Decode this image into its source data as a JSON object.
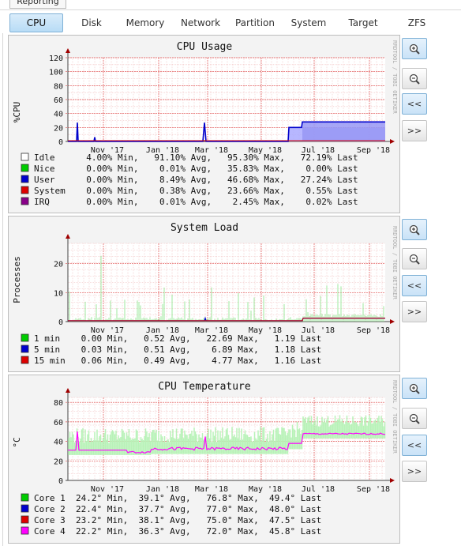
{
  "top_tab": {
    "label": "Reporting"
  },
  "tabs": [
    {
      "label": "CPU",
      "active": true
    },
    {
      "label": "Disk"
    },
    {
      "label": "Memory"
    },
    {
      "label": "Network"
    },
    {
      "label": "Partition"
    },
    {
      "label": "System"
    },
    {
      "label": "Target"
    },
    {
      "label": "ZFS"
    }
  ],
  "watermark": "RRDTOOL / TOBI OETIKER",
  "buttons": {
    "zoom_in": "zoom-in-icon",
    "zoom_out": "zoom-out-icon",
    "prev": "<<",
    "next": ">>"
  },
  "chart_data": [
    {
      "type": "area",
      "title": "CPU Usage",
      "ylabel": "%CPU",
      "ylim": [
        0,
        120
      ],
      "yticks": [
        "120",
        "100",
        "80",
        "60",
        "40",
        "20",
        "0"
      ],
      "xticks": [
        "Nov '17",
        "Jan '18",
        "Mar '18",
        "May '18",
        "Jul '18",
        "Sep '18"
      ],
      "grid": true,
      "series": [
        {
          "name": "Idle",
          "color": "#ffffff",
          "min": "4.00%",
          "avg": "91.10%",
          "max": "95.30%",
          "last": "72.19%"
        },
        {
          "name": "Nice",
          "color": "#00cc00",
          "min": "0.00%",
          "avg": "0.01%",
          "max": "35.83%",
          "last": "0.00%"
        },
        {
          "name": "User",
          "color": "#0000cc",
          "min": "0.00%",
          "avg": "8.49%",
          "max": "46.68%",
          "last": "27.24%"
        },
        {
          "name": "System",
          "color": "#dd0000",
          "min": "0.00%",
          "avg": "0.38%",
          "max": "23.66%",
          "last": "0.55%"
        },
        {
          "name": "IRQ",
          "color": "#880088",
          "min": "0.00%",
          "avg": "0.01%",
          "max": "2.45%",
          "last": "0.02%"
        }
      ]
    },
    {
      "type": "line",
      "title": "System Load",
      "ylabel": "Processes",
      "ylim": [
        0,
        27
      ],
      "yticks": [
        "20",
        "10",
        "0"
      ],
      "xticks": [
        "Nov '17",
        "Jan '18",
        "Mar '18",
        "May '18",
        "Jul '18",
        "Sep '18"
      ],
      "grid": true,
      "series": [
        {
          "name": "1 min",
          "color": "#00cc00",
          "min": "0.00",
          "avg": "0.52",
          "max": "22.69",
          "last": "1.19"
        },
        {
          "name": "5 min",
          "color": "#0000cc",
          "min": "0.03",
          "avg": "0.51",
          "max": "6.89",
          "last": "1.18"
        },
        {
          "name": "15 min",
          "color": "#dd0000",
          "min": "0.06",
          "avg": "0.49",
          "max": "4.77",
          "last": "1.16"
        }
      ]
    },
    {
      "type": "line",
      "title": "CPU Temperature",
      "ylabel": "°C",
      "ylim": [
        0,
        85
      ],
      "yticks": [
        "80",
        "60",
        "40",
        "20",
        "0"
      ],
      "xticks": [
        "Nov '17",
        "Jan '18",
        "Mar '18",
        "May '18",
        "Jul '18",
        "Sep '18"
      ],
      "grid": true,
      "series": [
        {
          "name": "Core 1",
          "color": "#00cc00",
          "min": "24.2°",
          "avg": "39.1°",
          "max": "76.8°",
          "last": "49.4°"
        },
        {
          "name": "Core 2",
          "color": "#0000cc",
          "min": "22.4°",
          "avg": "37.7°",
          "max": "77.0°",
          "last": "48.0°"
        },
        {
          "name": "Core 3",
          "color": "#dd0000",
          "min": "23.2°",
          "avg": "38.1°",
          "max": "75.0°",
          "last": "47.5°"
        },
        {
          "name": "Core 4",
          "color": "#ff00ff",
          "min": "22.2°",
          "avg": "36.3°",
          "max": "72.0°",
          "last": "45.8°"
        }
      ]
    }
  ]
}
